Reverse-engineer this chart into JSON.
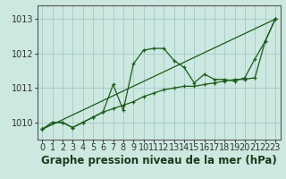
{
  "xlabel": "Graphe pression niveau de la mer (hPa)",
  "ylim": [
    1009.5,
    1013.4
  ],
  "xlim": [
    -0.5,
    23.5
  ],
  "yticks": [
    1010,
    1011,
    1012,
    1013
  ],
  "xticks": [
    0,
    1,
    2,
    3,
    4,
    5,
    6,
    7,
    8,
    9,
    10,
    11,
    12,
    13,
    14,
    15,
    16,
    17,
    18,
    19,
    20,
    21,
    22,
    23
  ],
  "bg_color": "#cce8e0",
  "grid_color": "#aacccc",
  "line_color": "#1a5c1a",
  "series": [
    {
      "x": [
        0,
        1,
        2,
        3,
        4,
        5,
        6,
        7,
        8,
        9,
        10,
        11,
        12,
        13,
        14,
        15,
        16,
        17,
        18,
        19,
        20,
        21,
        22,
        23
      ],
      "y": [
        1009.8,
        1010.0,
        1010.0,
        1009.85,
        1010.0,
        1010.15,
        1010.3,
        1011.1,
        1010.35,
        1011.7,
        1012.1,
        1012.15,
        1012.15,
        1011.8,
        1011.6,
        1011.15,
        1011.4,
        1011.25,
        1011.25,
        1011.2,
        1011.3,
        1011.85,
        1012.35,
        1013.0
      ]
    },
    {
      "x": [
        0,
        1,
        2,
        3,
        4,
        5,
        6,
        7,
        8,
        9,
        10,
        11,
        12,
        13,
        14,
        15,
        16,
        17,
        18,
        19,
        20,
        21,
        22,
        23
      ],
      "y": [
        1009.8,
        1010.0,
        1010.0,
        1009.85,
        1010.0,
        1010.15,
        1010.3,
        1010.4,
        1010.5,
        1010.6,
        1010.75,
        1010.85,
        1010.95,
        1011.0,
        1011.05,
        1011.05,
        1011.1,
        1011.15,
        1011.2,
        1011.25,
        1011.25,
        1011.3,
        1012.35,
        1013.0
      ]
    },
    {
      "x": [
        0,
        23
      ],
      "y": [
        1009.8,
        1013.0
      ]
    }
  ],
  "tick_fontsize": 7,
  "label_fontsize": 8.5,
  "label_fontweight": "bold"
}
